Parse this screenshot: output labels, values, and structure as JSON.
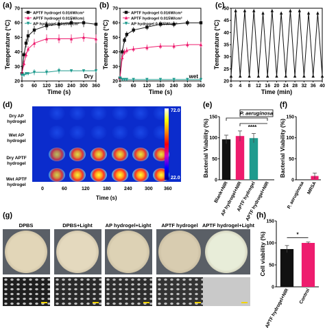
{
  "panels": {
    "a": {
      "label": "(a)"
    },
    "b": {
      "label": "(b)"
    },
    "c": {
      "label": "(c)"
    },
    "d": {
      "label": "(d)"
    },
    "e": {
      "label": "(e)"
    },
    "f": {
      "label": "(f)"
    },
    "g": {
      "label": "(g)"
    },
    "h": {
      "label": "(h)"
    }
  },
  "colors": {
    "black": "#111111",
    "pink": "#ee1c6e",
    "teal": "#1f9b8e",
    "ir_bg": "#0b2ccc"
  },
  "chart_data": [
    {
      "id": "a",
      "type": "line",
      "xlabel": "Time (s)",
      "ylabel": "Temperature (°C)",
      "xticks": [
        0,
        60,
        120,
        180,
        240,
        300,
        360
      ],
      "yticks": [
        20,
        30,
        40,
        50,
        60,
        70
      ],
      "xlim": [
        0,
        360
      ],
      "ylim": [
        20,
        70
      ],
      "annotation": "Dry",
      "x": [
        0,
        10,
        20,
        30,
        60,
        120,
        180,
        240,
        300,
        360
      ],
      "series": [
        {
          "name": "APTF hydrogel 0.016W/cm²",
          "color": "black",
          "marker": "square",
          "values": [
            25,
            38,
            46,
            51,
            55,
            58,
            59,
            60,
            60,
            59
          ],
          "err": [
            1,
            2,
            3,
            4,
            3,
            3,
            3,
            3,
            3,
            3
          ]
        },
        {
          "name": "APTF hydrogel 0.015W/cm²",
          "color": "pink",
          "marker": "triangle",
          "values": [
            25,
            32,
            38,
            42,
            46,
            49,
            49,
            49,
            50,
            49
          ],
          "err": [
            1,
            2,
            2,
            2,
            3,
            3,
            3,
            3,
            3,
            3
          ]
        },
        {
          "name": "AP hydrogel 0.015W/cm²",
          "color": "teal",
          "marker": "triangle-down",
          "values": [
            24,
            24,
            25,
            25,
            26,
            26,
            27,
            27,
            27,
            27
          ],
          "err": [
            1,
            1,
            1,
            1,
            2,
            2,
            2,
            1,
            1,
            1
          ]
        }
      ]
    },
    {
      "id": "b",
      "type": "line",
      "xlabel": "Time (s)",
      "ylabel": "Temperature (°C)",
      "xticks": [
        0,
        60,
        120,
        180,
        240,
        300,
        360
      ],
      "yticks": [
        20,
        30,
        40,
        50,
        60,
        70
      ],
      "xlim": [
        0,
        360
      ],
      "ylim": [
        20,
        70
      ],
      "annotation": "wet",
      "x": [
        0,
        10,
        20,
        30,
        60,
        120,
        180,
        240,
        300,
        360
      ],
      "series": [
        {
          "name": "APTF hydrogel 0.016W/cm²",
          "color": "black",
          "marker": "square",
          "values": [
            22,
            40,
            48,
            52,
            55,
            57,
            59,
            59,
            60,
            60
          ],
          "err": [
            1,
            2,
            2,
            2,
            2,
            2,
            2,
            2,
            2,
            2
          ]
        },
        {
          "name": "APTF hydrogel 0.015W/cm²",
          "color": "pink",
          "marker": "triangle",
          "values": [
            22,
            36,
            40,
            41,
            42,
            43,
            44,
            44,
            45,
            45
          ],
          "err": [
            1,
            2,
            2,
            2,
            2,
            2,
            2,
            2,
            2,
            2
          ]
        },
        {
          "name": "AP hydrogel 0.015W/cm²",
          "color": "teal",
          "marker": "triangle-down",
          "values": [
            22,
            21,
            21,
            21,
            21,
            21,
            21,
            21,
            21,
            21
          ],
          "err": [
            1,
            1,
            1,
            1,
            1,
            1,
            1,
            1,
            1,
            1
          ]
        }
      ]
    },
    {
      "id": "c",
      "type": "line",
      "xlabel": "Time (min)",
      "ylabel": "Temperature (°C)",
      "xticks": [
        0,
        4,
        8,
        12,
        16,
        20,
        24,
        28,
        32,
        36,
        40
      ],
      "yticks": [
        20,
        25,
        30,
        35,
        40,
        45,
        50
      ],
      "xlim": [
        0,
        40
      ],
      "ylim": [
        20,
        50
      ],
      "x": [
        0,
        2,
        4,
        6,
        8,
        10,
        12,
        14,
        16,
        18,
        20,
        22,
        24,
        26,
        28,
        30,
        32,
        34,
        36,
        38,
        40
      ],
      "series": [
        {
          "name": "",
          "color": "black",
          "marker": "triangle",
          "values": [
            22,
            49,
            22,
            49,
            22,
            49,
            22,
            48,
            22,
            49,
            22,
            48,
            22,
            49,
            22,
            49,
            22,
            48,
            22,
            48,
            22
          ]
        }
      ]
    },
    {
      "id": "e",
      "type": "bar",
      "ylabel": "Bacterial Viability (%)",
      "yticks": [
        0,
        50,
        100,
        150
      ],
      "ylim": [
        0,
        150
      ],
      "annotation": "P. aeruginosa",
      "significance": "****",
      "categories": [
        "Blank+NIR",
        "AP hydrogel+NIR",
        "APTF hydrogel",
        "APTF hydrogel+NIR"
      ],
      "values": [
        96,
        104,
        99,
        0
      ],
      "err": [
        10,
        12,
        11,
        0
      ],
      "bar_colors": [
        "black",
        "pink",
        "teal",
        "black"
      ]
    },
    {
      "id": "f",
      "type": "bar",
      "ylabel": "Bacterial Viability (%)",
      "yticks": [
        0,
        50,
        100,
        150
      ],
      "ylim": [
        0,
        150
      ],
      "categories": [
        "P. aeruginosa",
        "MRSA"
      ],
      "values": [
        0,
        9
      ],
      "err": [
        0,
        7
      ],
      "bar_colors": [
        "black",
        "pink"
      ]
    },
    {
      "id": "h",
      "type": "bar",
      "ylabel": "Cell viability (%)",
      "yticks": [
        0,
        50,
        100,
        150
      ],
      "ylim": [
        0,
        150
      ],
      "significance": "*",
      "categories": [
        "APTF hydrogel+NIR",
        "Control"
      ],
      "values": [
        86,
        100
      ],
      "err": [
        8,
        2
      ],
      "bar_colors": [
        "black",
        "pink"
      ]
    }
  ],
  "ir": {
    "rows": [
      "Dry AP hydrogel",
      "Wet AP hydrogel",
      "Dry APTF hydrogel",
      "Wet APTF hydrogel"
    ],
    "times": [
      "0",
      "60",
      "120",
      "180",
      "240",
      "300",
      "360"
    ],
    "xlabel": "Time (s)",
    "scale_max": "72.0",
    "scale_min": "22.0"
  },
  "plates": {
    "labels": [
      "DPBS",
      "DPBS+Light",
      "AP hydrogel+Light",
      "APTF hydrogel",
      "APTF hydrogel+Light"
    ]
  }
}
